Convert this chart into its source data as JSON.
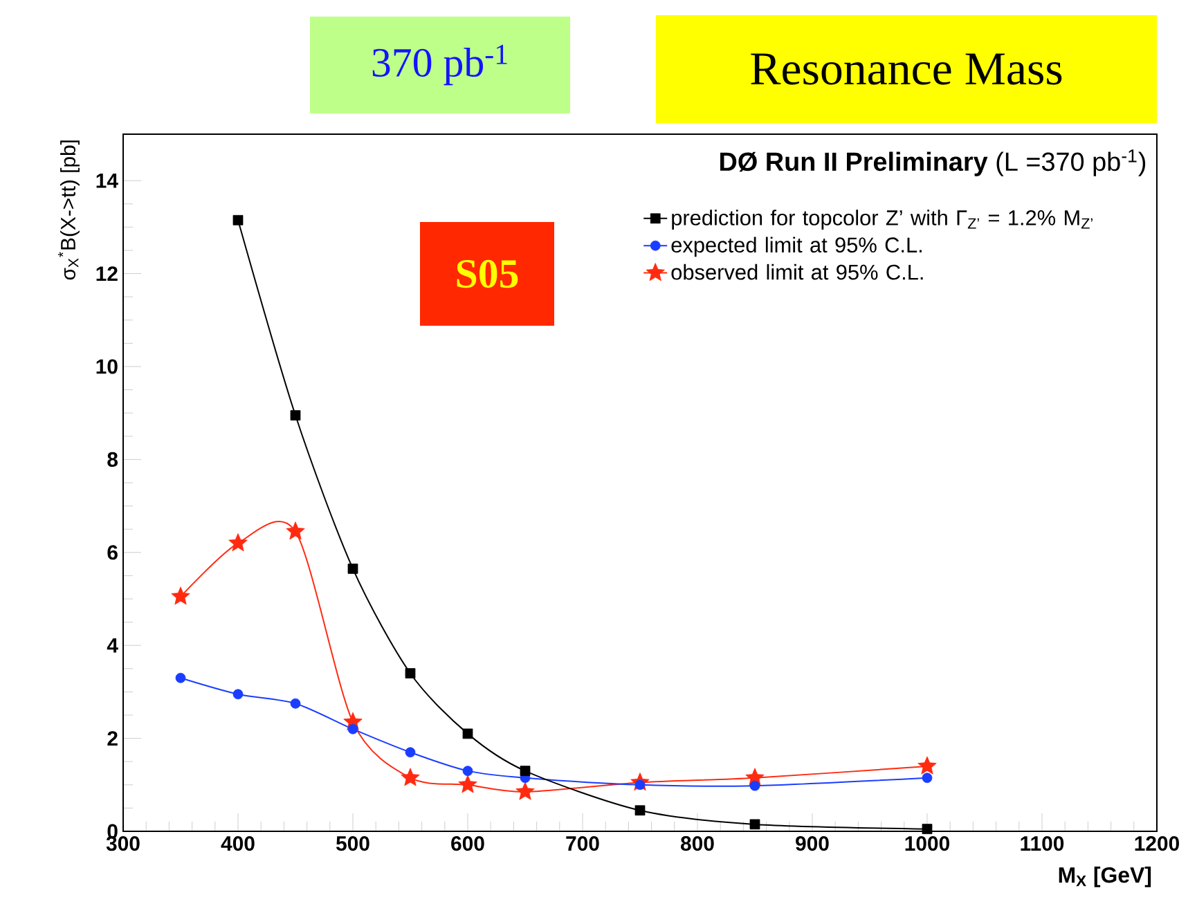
{
  "chart_data": {
    "type": "line",
    "title": "**DØ Run II Preliminary** (L =370 pb$^{-1}$)",
    "xlabel": "M$_{X}$ [GeV]",
    "ylabel": "σ$_{X}$$^{*}$B(X->tt)  [pb]",
    "annotations": [
      "370 pb$^{-1}$",
      "Resonance Mass",
      "S05"
    ],
    "xlim": [
      300,
      1200
    ],
    "ylim": [
      0,
      15
    ],
    "xticks": [
      300,
      400,
      500,
      600,
      700,
      800,
      900,
      1000,
      1100,
      1200
    ],
    "yticks": [
      0,
      2,
      4,
      6,
      8,
      10,
      12,
      14
    ],
    "grid": false,
    "legend": "top right",
    "line_style": "solid",
    "series": [
      {
        "name": "prediction for topcolor Z’ with Γ$_{Z’}$ = 1.2% M$_{Z’}$",
        "color": "#000000",
        "marker": "square",
        "x": [
          400,
          450,
          500,
          550,
          600,
          650,
          750,
          850,
          1000
        ],
        "values": [
          13.15,
          8.95,
          5.65,
          3.4,
          2.1,
          1.3,
          0.45,
          0.15,
          0.05
        ]
      },
      {
        "name": "expected limit at 95% C.L.",
        "color": "#1a3dff",
        "marker": "circle",
        "x": [
          350,
          400,
          450,
          500,
          550,
          600,
          650,
          750,
          850,
          1000
        ],
        "values": [
          3.3,
          2.95,
          2.75,
          2.2,
          1.7,
          1.3,
          1.15,
          1.0,
          0.98,
          1.15
        ]
      },
      {
        "name": "observed limit at 95% C.L.",
        "color": "#ff2a10",
        "marker": "star",
        "x": [
          350,
          400,
          450,
          500,
          550,
          600,
          650,
          750,
          850,
          1000
        ],
        "values": [
          5.05,
          6.2,
          6.45,
          2.35,
          1.15,
          1.0,
          0.85,
          1.05,
          1.15,
          1.4
        ]
      }
    ]
  }
}
